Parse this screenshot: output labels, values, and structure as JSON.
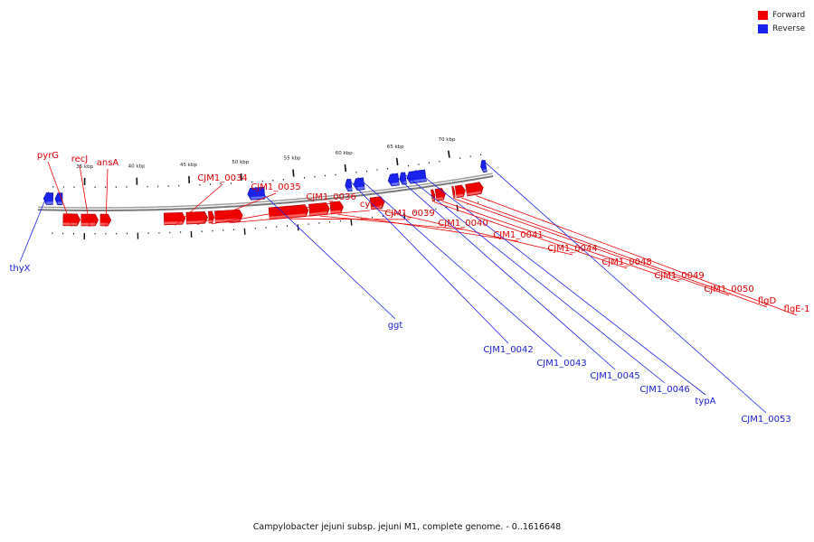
{
  "colors": {
    "forward": "#ee0000",
    "forward_light": "#ff8a8a",
    "reverse": "#1a22ee",
    "reverse_light": "#8a90ff",
    "backbone": "#7a7a7a",
    "tick": "#111111"
  },
  "legend": [
    {
      "label": "Forward",
      "strand": "forward"
    },
    {
      "label": "Reverse",
      "strand": "reverse"
    }
  ],
  "caption": "Campylobacter jejuni subsp. jejuni M1, complete genome. - 0..1616648",
  "scale": {
    "unit": "kbp",
    "visible_start_kbp": 31.1,
    "visible_end_kbp": 73.3,
    "major_ticks": [
      {
        "kbp": 35,
        "label": "35 kbp"
      },
      {
        "kbp": 40,
        "label": "40 kbp"
      },
      {
        "kbp": 45,
        "label": "45 kbp"
      },
      {
        "kbp": 50,
        "label": "50 kbp"
      },
      {
        "kbp": 55,
        "label": "55 kbp"
      },
      {
        "kbp": 60,
        "label": "60 kbp"
      },
      {
        "kbp": 65,
        "label": "65 kbp"
      },
      {
        "kbp": 70,
        "label": "70 kbp"
      }
    ]
  },
  "genes": [
    {
      "name": "thyX",
      "strand": "reverse",
      "start_kbp": 31.1,
      "end_kbp": 32.0
    },
    {
      "name": "",
      "strand": "reverse",
      "start_kbp": 32.2,
      "end_kbp": 32.9
    },
    {
      "name": "pyrG",
      "strand": "forward",
      "start_kbp": 33.0,
      "end_kbp": 34.6
    },
    {
      "name": "recJ",
      "strand": "forward",
      "start_kbp": 34.7,
      "end_kbp": 36.3
    },
    {
      "name": "ansA",
      "strand": "forward",
      "start_kbp": 36.5,
      "end_kbp": 37.5
    },
    {
      "name": "CJM1_0034",
      "strand": "forward",
      "start_kbp": 42.5,
      "end_kbp": 44.5
    },
    {
      "name": "CJM1_0035",
      "strand": "forward",
      "start_kbp": 44.6,
      "end_kbp": 46.6
    },
    {
      "name": "CJM1_0036",
      "strand": "forward",
      "start_kbp": 46.7,
      "end_kbp": 47.2
    },
    {
      "name": "cytC",
      "strand": "forward",
      "start_kbp": 47.3,
      "end_kbp": 49.9
    },
    {
      "name": "ggt",
      "strand": "reverse",
      "start_kbp": 50.5,
      "end_kbp": 52.1
    },
    {
      "name": "CJM1_0039",
      "strand": "forward",
      "start_kbp": 52.4,
      "end_kbp": 56.1
    },
    {
      "name": "CJM1_0040",
      "strand": "forward",
      "start_kbp": 56.2,
      "end_kbp": 58.1
    },
    {
      "name": "CJM1_0041",
      "strand": "forward",
      "start_kbp": 58.2,
      "end_kbp": 59.4
    },
    {
      "name": "CJM1_0042",
      "strand": "reverse",
      "start_kbp": 59.8,
      "end_kbp": 60.4
    },
    {
      "name": "CJM1_0043",
      "strand": "reverse",
      "start_kbp": 60.6,
      "end_kbp": 61.6
    },
    {
      "name": "CJM1_0044",
      "strand": "forward",
      "start_kbp": 62.0,
      "end_kbp": 63.3
    },
    {
      "name": "CJM1_0045",
      "strand": "reverse",
      "start_kbp": 63.9,
      "end_kbp": 64.9
    },
    {
      "name": "CJM1_0046",
      "strand": "reverse",
      "start_kbp": 65.0,
      "end_kbp": 65.6
    },
    {
      "name": "typA",
      "strand": "reverse",
      "start_kbp": 65.7,
      "end_kbp": 67.5
    },
    {
      "name": "CJM1_0048",
      "strand": "forward",
      "start_kbp": 67.8,
      "end_kbp": 68.1
    },
    {
      "name": "CJM1_0049",
      "strand": "forward",
      "start_kbp": 68.2,
      "end_kbp": 69.1
    },
    {
      "name": "CJM1_0050",
      "strand": "forward",
      "start_kbp": 69.8,
      "end_kbp": 70.0
    },
    {
      "name": "flgD",
      "strand": "forward",
      "start_kbp": 70.1,
      "end_kbp": 71.0
    },
    {
      "name": "flgE-1",
      "strand": "forward",
      "start_kbp": 71.1,
      "end_kbp": 72.7
    },
    {
      "name": "CJM1_0053",
      "strand": "reverse",
      "start_kbp": 72.8,
      "end_kbp": 73.3
    }
  ]
}
